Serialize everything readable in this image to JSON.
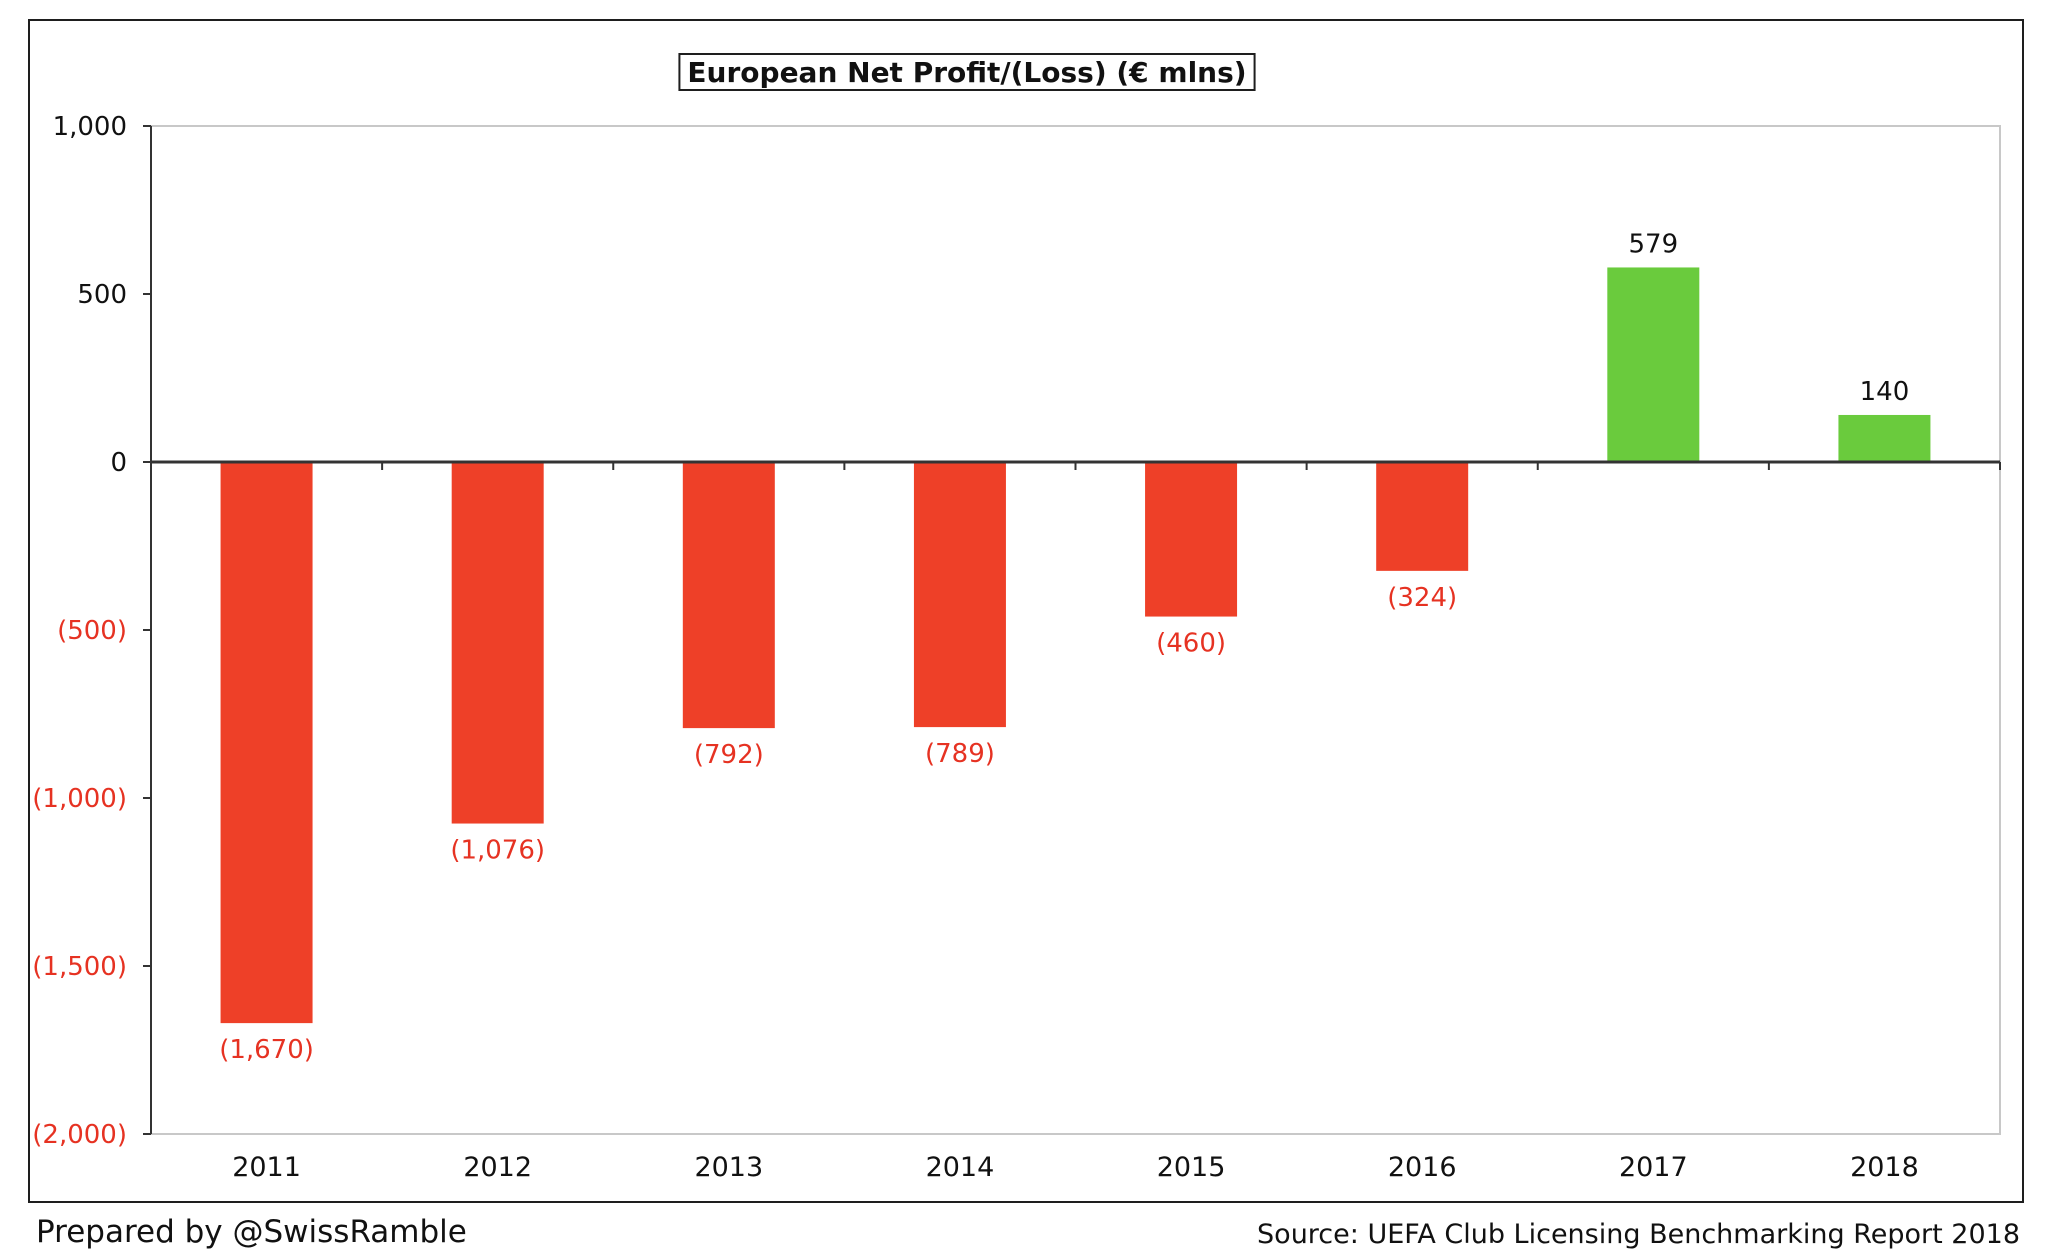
{
  "colors": {
    "negative": "#ee4028",
    "positive": "#6acb3d",
    "negative_text": "#e63222",
    "axis": "#333333",
    "plot_border": "#c8c8c8"
  },
  "footer": {
    "prepared_by": "Prepared by @SwissRamble",
    "source": "Source: UEFA Club Licensing Benchmarking Report 2018"
  },
  "chart_data": {
    "type": "bar",
    "title": "European Net Profit/(Loss) (€ mlns)",
    "categories": [
      "2011",
      "2012",
      "2013",
      "2014",
      "2015",
      "2016",
      "2017",
      "2018"
    ],
    "values": [
      -1670,
      -1076,
      -792,
      -789,
      -460,
      -324,
      579,
      140
    ],
    "value_labels": [
      "(1,670)",
      "(1,076)",
      "(792)",
      "(789)",
      "(460)",
      "(324)",
      "579",
      "140"
    ],
    "ylim": [
      -2000,
      1000
    ],
    "yticks": [
      1000,
      500,
      0,
      -500,
      -1000,
      -1500,
      -2000
    ],
    "ytick_labels": [
      "1,000",
      "500",
      "0",
      "(500)",
      "(1,000)",
      "(1,500)",
      "(2,000)"
    ],
    "xlabel": "",
    "ylabel": "",
    "grid": false,
    "legend": "none"
  }
}
